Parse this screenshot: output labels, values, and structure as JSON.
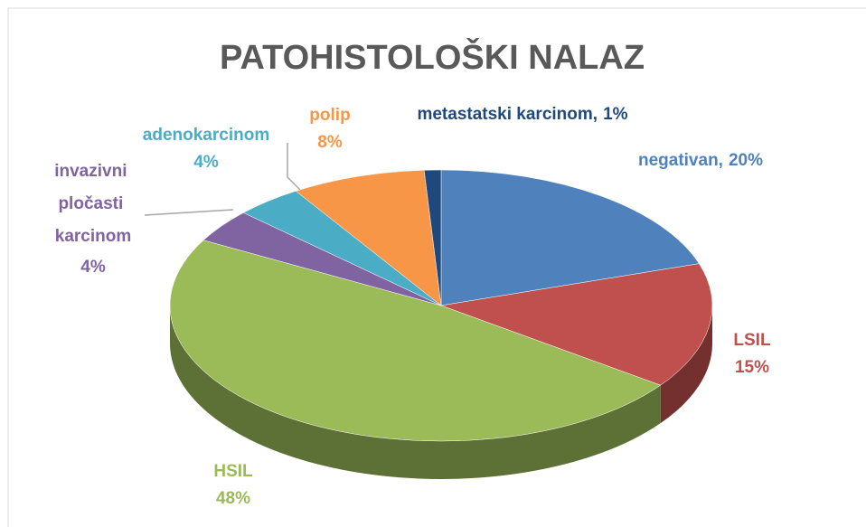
{
  "chart_data": {
    "type": "pie",
    "title": "PATOHISTOLOŠKI NALAZ",
    "categories": [
      "negativan,",
      "LSIL",
      "HSIL",
      "invazivni pločasti karcinom",
      "adenokarcinom",
      "polip",
      "metastatski karcinom,"
    ],
    "values": [
      20,
      15,
      48,
      4,
      4,
      8,
      1
    ],
    "value_labels": [
      "20%",
      "15%",
      "48%",
      "4%",
      "4%",
      "8%",
      "1%"
    ],
    "colors": [
      "#4f81bd",
      "#c0504d",
      "#9bbb59",
      "#8064a2",
      "#4bacc6",
      "#f79646",
      "#1f497d"
    ]
  }
}
